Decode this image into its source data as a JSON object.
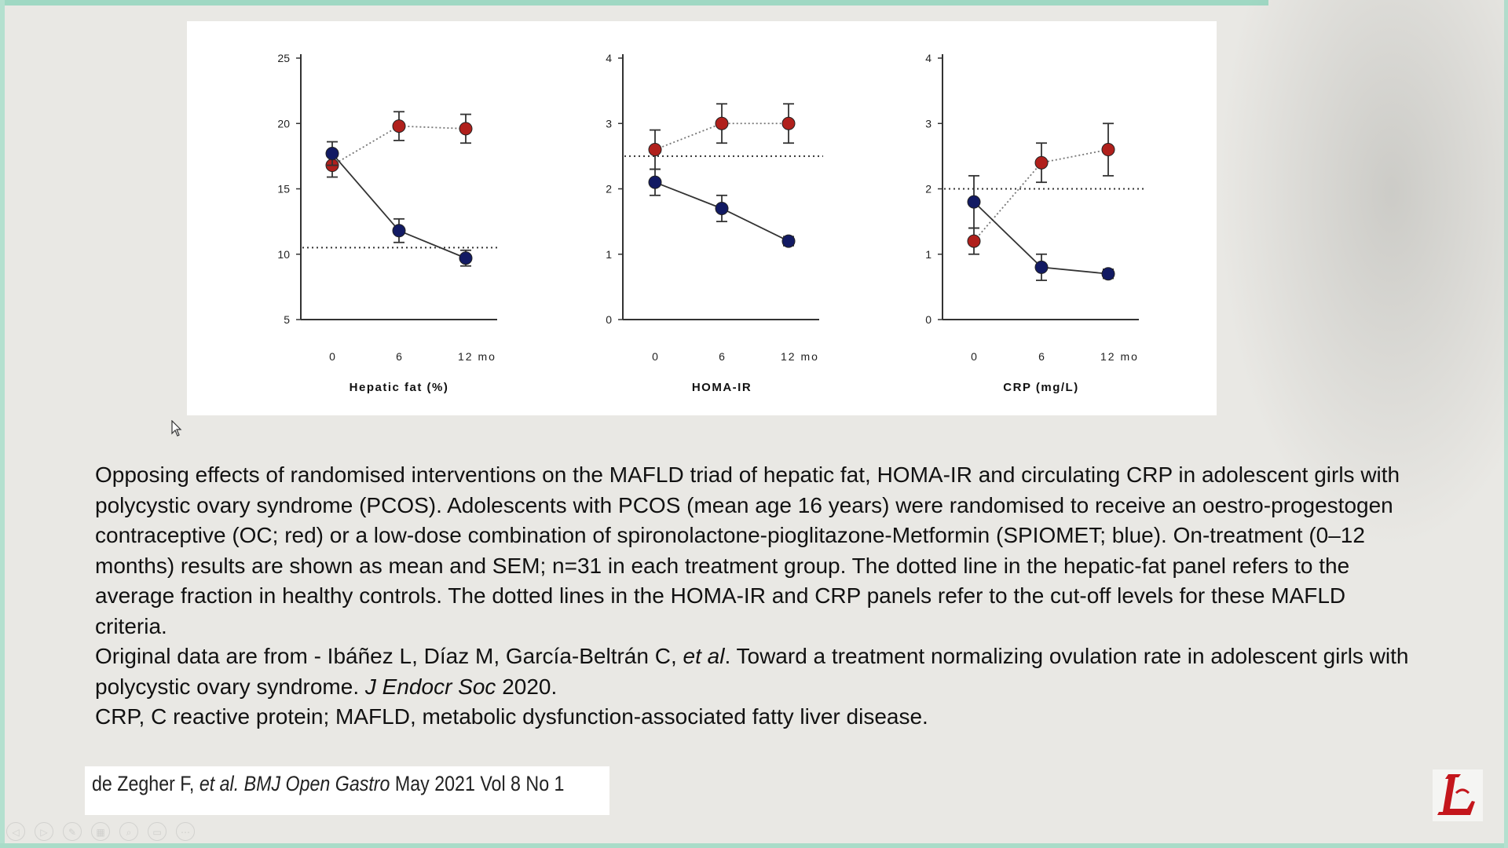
{
  "chart_data": [
    {
      "type": "line",
      "categories": [
        "0",
        "6",
        "12 mo"
      ],
      "xlabel": "Hepatic fat (%)",
      "ylim": [
        5,
        25
      ],
      "yticks": [
        5,
        10,
        15,
        20,
        25
      ],
      "reference_line": 10.5,
      "series": [
        {
          "values": [
            16.8,
            19.8,
            19.6
          ],
          "sem": [
            0.9,
            1.1,
            1.1
          ],
          "color": "#b0201c"
        },
        {
          "values": [
            17.7,
            11.8,
            9.7
          ],
          "sem": [
            0.9,
            0.9,
            0.6
          ],
          "color": "#121a63"
        }
      ]
    },
    {
      "type": "line",
      "categories": [
        "0",
        "6",
        "12 mo"
      ],
      "xlabel": "HOMA-IR",
      "ylim": [
        0,
        4
      ],
      "yticks": [
        0,
        1,
        2,
        3,
        4
      ],
      "reference_line": 2.5,
      "series": [
        {
          "values": [
            2.6,
            3.0,
            3.0
          ],
          "sem": [
            0.3,
            0.3,
            0.3
          ],
          "color": "#b0201c"
        },
        {
          "values": [
            2.1,
            1.7,
            1.2
          ],
          "sem": [
            0.2,
            0.2,
            0.07
          ],
          "color": "#121a63"
        }
      ]
    },
    {
      "type": "line",
      "categories": [
        "0",
        "6",
        "12 mo"
      ],
      "xlabel": "CRP (mg/L)",
      "ylim": [
        0,
        4
      ],
      "yticks": [
        0,
        1,
        2,
        3,
        4
      ],
      "reference_line": 2.0,
      "series": [
        {
          "values": [
            1.2,
            2.4,
            2.6
          ],
          "sem": [
            0.2,
            0.3,
            0.4
          ],
          "color": "#b0201c"
        },
        {
          "values": [
            1.8,
            0.8,
            0.7
          ],
          "sem": [
            0.4,
            0.2,
            0.07
          ],
          "color": "#121a63"
        }
      ]
    }
  ],
  "caption": {
    "main": "Opposing effects of randomised interventions on the MAFLD triad of hepatic fat, HOMA-IR and circulating CRP in adolescent girls with polycystic ovary syndrome (PCOS). Adolescents with PCOS (mean age 16 years) were randomised to receive an oestro-progestogen contraceptive (OC; red) or a low-dose combination of spironolactone-pioglitazone-Metformin (SPIOMET; blue). On-treatment (0–12 months) results are shown as mean and SEM; n=31 in each treatment group. The dotted line in the hepatic-fat panel refers to the average fraction in healthy controls. The dotted lines in the HOMA-IR and CRP panels refer to the cut-off levels for these MAFLD criteria.",
    "source_prefix": "Original data are from - Ibáñez L, Díaz M, García-Beltrán C, ",
    "source_etal": "et al",
    "source_mid": ". Toward a treatment normalizing ovulation rate in adolescent girls with polycystic ovary syndrome. ",
    "source_journal": "J Endocr Soc",
    "source_year": " 2020.",
    "abbreviations": "CRP, C reactive protein; MAFLD, metabolic dysfunction-associated fatty liver disease."
  },
  "citation": {
    "author": "de Zegher F, ",
    "etal_journal": "et al. BMJ Open Gastro",
    "issue": " May 2021 Vol 8 No 1"
  },
  "colors": {
    "oc_red": "#b0201c",
    "spiomet_blue": "#121a63",
    "frame_green": "#9fd8c3"
  }
}
